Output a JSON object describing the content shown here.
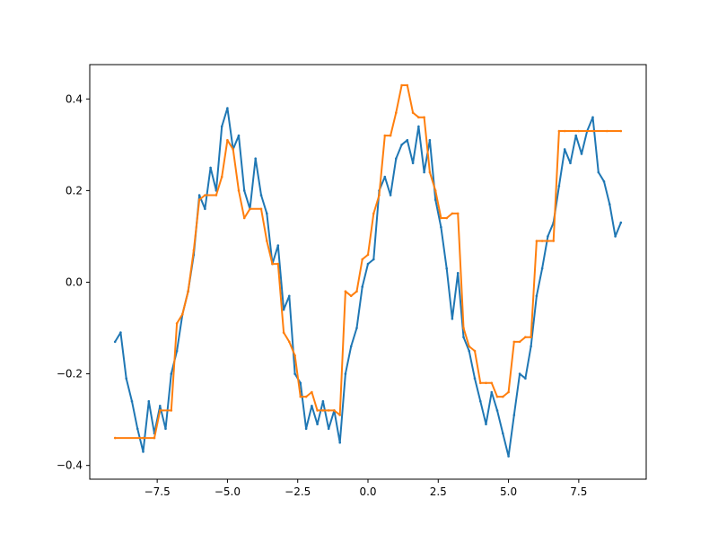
{
  "chart_data": {
    "type": "scatter",
    "title": "",
    "xlabel": "",
    "ylabel": "",
    "xlim": [
      -9.9,
      9.9
    ],
    "ylim": [
      -0.43,
      0.475
    ],
    "x_ticks": [
      -7.5,
      -5.0,
      -2.5,
      0.0,
      2.5,
      5.0,
      7.5
    ],
    "x_tick_labels": [
      "−7.5",
      "−5.0",
      "−2.5",
      "0.0",
      "2.5",
      "5.0",
      "7.5"
    ],
    "y_ticks": [
      -0.4,
      -0.2,
      0.0,
      0.2,
      0.4
    ],
    "y_tick_labels": [
      "−0.4",
      "−0.2",
      "0.0",
      "0.2",
      "0.4"
    ],
    "grid": false,
    "legend": "none",
    "series": [
      {
        "color": "#1f77b4",
        "x": [
          -9.0,
          -8.8,
          -8.6,
          -8.4,
          -8.2,
          -8.0,
          -7.8,
          -7.6,
          -7.4,
          -7.2,
          -7.0,
          -6.8,
          -6.6,
          -6.4,
          -6.2,
          -6.0,
          -5.8,
          -5.6,
          -5.4,
          -5.2,
          -5.0,
          -4.8,
          -4.6,
          -4.4,
          -4.2,
          -4.0,
          -3.8,
          -3.6,
          -3.4,
          -3.2,
          -3.0,
          -2.8,
          -2.6,
          -2.4,
          -2.2,
          -2.0,
          -1.8,
          -1.6,
          -1.4,
          -1.2,
          -1.0,
          -0.8,
          -0.6,
          -0.4,
          -0.2,
          0.0,
          0.2,
          0.4,
          0.6,
          0.8,
          1.0,
          1.2,
          1.4,
          1.6,
          1.8,
          2.0,
          2.2,
          2.4,
          2.6,
          2.8,
          3.0,
          3.2,
          3.4,
          3.6,
          3.8,
          4.0,
          4.2,
          4.4,
          4.6,
          4.8,
          5.0,
          5.2,
          5.4,
          5.6,
          5.8,
          6.0,
          6.2,
          6.4,
          6.6,
          6.8,
          7.0,
          7.2,
          7.4,
          7.6,
          7.8,
          8.0,
          8.2,
          8.4,
          8.6,
          8.8,
          9.0
        ],
        "y": [
          -0.13,
          -0.11,
          -0.21,
          -0.26,
          -0.32,
          -0.37,
          -0.26,
          -0.33,
          -0.27,
          -0.32,
          -0.2,
          -0.15,
          -0.07,
          -0.02,
          0.06,
          0.19,
          0.16,
          0.25,
          0.2,
          0.34,
          0.38,
          0.29,
          0.32,
          0.2,
          0.16,
          0.27,
          0.19,
          0.15,
          0.04,
          0.08,
          -0.06,
          -0.03,
          -0.2,
          -0.22,
          -0.32,
          -0.27,
          -0.31,
          -0.26,
          -0.32,
          -0.28,
          -0.35,
          -0.2,
          -0.14,
          -0.1,
          -0.01,
          0.04,
          0.05,
          0.2,
          0.23,
          0.19,
          0.27,
          0.3,
          0.31,
          0.26,
          0.34,
          0.24,
          0.31,
          0.18,
          0.12,
          0.03,
          -0.08,
          0.02,
          -0.12,
          -0.15,
          -0.21,
          -0.26,
          -0.31,
          -0.24,
          -0.28,
          -0.33,
          -0.38,
          -0.29,
          -0.2,
          -0.21,
          -0.14,
          -0.03,
          0.03,
          0.1,
          0.13,
          0.21,
          0.29,
          0.26,
          0.32,
          0.28,
          0.33,
          0.36,
          0.24,
          0.22,
          0.17,
          0.1,
          0.13
        ]
      },
      {
        "color": "#ff7f0e",
        "x": [
          -9.0,
          -8.0,
          -7.6,
          -7.4,
          -7.0,
          -6.8,
          -6.6,
          -6.4,
          -6.2,
          -6.0,
          -5.8,
          -5.4,
          -5.2,
          -5.0,
          -4.8,
          -4.6,
          -4.4,
          -4.2,
          -3.8,
          -3.6,
          -3.4,
          -3.2,
          -3.0,
          -2.8,
          -2.6,
          -2.4,
          -2.2,
          -2.0,
          -1.8,
          -1.6,
          -1.4,
          -1.2,
          -1.0,
          -0.8,
          -0.6,
          -0.4,
          -0.2,
          0.0,
          0.2,
          0.4,
          0.6,
          0.8,
          1.0,
          1.2,
          1.4,
          1.6,
          1.8,
          2.0,
          2.2,
          2.4,
          2.6,
          2.8,
          3.0,
          3.2,
          3.4,
          3.6,
          3.8,
          4.0,
          4.2,
          4.4,
          4.6,
          4.8,
          5.0,
          5.2,
          5.4,
          5.6,
          5.8,
          6.0,
          6.2,
          6.4,
          6.6,
          6.8,
          7.0,
          7.5,
          8.0,
          8.5,
          9.0
        ],
        "y": [
          -0.34,
          -0.34,
          -0.34,
          -0.28,
          -0.28,
          -0.09,
          -0.07,
          -0.02,
          0.07,
          0.18,
          0.19,
          0.19,
          0.23,
          0.31,
          0.29,
          0.2,
          0.14,
          0.16,
          0.16,
          0.09,
          0.04,
          0.04,
          -0.11,
          -0.13,
          -0.16,
          -0.25,
          -0.25,
          -0.24,
          -0.28,
          -0.28,
          -0.28,
          -0.28,
          -0.29,
          -0.02,
          -0.03,
          -0.02,
          0.05,
          0.06,
          0.15,
          0.19,
          0.32,
          0.32,
          0.37,
          0.43,
          0.43,
          0.37,
          0.36,
          0.36,
          0.24,
          0.2,
          0.14,
          0.14,
          0.15,
          0.15,
          -0.1,
          -0.14,
          -0.15,
          -0.22,
          -0.22,
          -0.22,
          -0.25,
          -0.25,
          -0.24,
          -0.13,
          -0.13,
          -0.12,
          -0.12,
          0.09,
          0.09,
          0.09,
          0.09,
          0.33,
          0.33,
          0.33,
          0.33,
          0.33,
          0.33
        ]
      }
    ]
  }
}
